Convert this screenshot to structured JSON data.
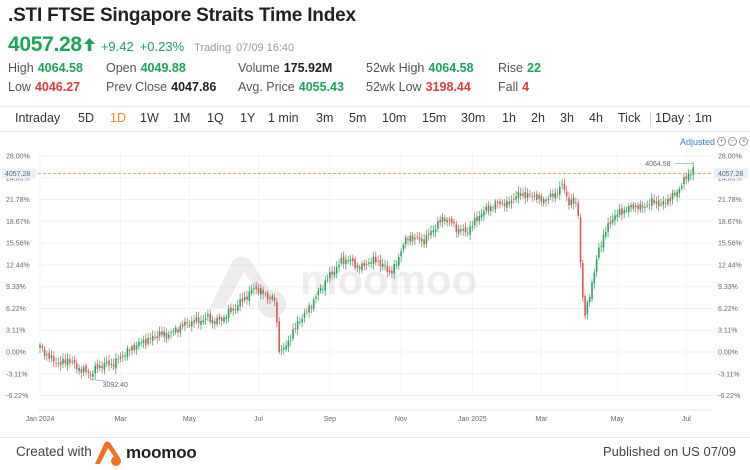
{
  "header": {
    "title": ".STI FTSE Singapore Straits Time Index",
    "price": "4057.28",
    "change": "+9.42",
    "change_pct": "+0.23%",
    "status": "Trading",
    "datetime": "07/09 16:40"
  },
  "stats": [
    {
      "label": "High",
      "value": "4064.58",
      "color": "#1aa55a"
    },
    {
      "label": "Low",
      "value": "4046.27",
      "color": "#e03c3c"
    },
    {
      "label": "Open",
      "value": "4049.88",
      "color": "#1aa55a"
    },
    {
      "label": "Prev Close",
      "value": "4047.86",
      "color": "#222222"
    },
    {
      "label": "Volume",
      "value": "175.92M",
      "color": "#222222"
    },
    {
      "label": "Avg. Price",
      "value": "4055.43",
      "color": "#1aa55a"
    },
    {
      "label": "52wk High",
      "value": "4064.58",
      "color": "#1aa55a"
    },
    {
      "label": "52wk Low",
      "value": "3198.44",
      "color": "#e03c3c"
    },
    {
      "label": "Rise",
      "value": "22",
      "color": "#1aa55a"
    },
    {
      "label": "Fall",
      "value": "4",
      "color": "#e03c3c"
    }
  ],
  "tabs": [
    "Intraday",
    "5D",
    "1D",
    "1W",
    "1M",
    "1Q",
    "1Y",
    "1 min",
    "3m",
    "5m",
    "10m",
    "15m",
    "30m",
    "1h",
    "2h",
    "3h",
    "4h",
    "Tick",
    "1Day : 1m"
  ],
  "active_tab": "1D",
  "chart_controls": {
    "adjusted": "Adjusted"
  },
  "watermark": "moomoo",
  "chart_data": {
    "type": "candlestick",
    "x_labels": [
      "Jan 2024",
      "Mar",
      "May",
      "Jul",
      "Sep",
      "Nov",
      "Jan 2025",
      "Mar",
      "May",
      "Jul"
    ],
    "y_ticks": [
      "28.00%",
      "24.89%",
      "21.78%",
      "18.67%",
      "15.56%",
      "12.44%",
      "9.33%",
      "6.22%",
      "3.11%",
      "0.00%",
      "-3.11%",
      "-6.22%"
    ],
    "ylim": [
      -6.22,
      28.0
    ],
    "current_value_label": "4057.28",
    "high_annotation": "4064.58",
    "low_annotation": "3092.40",
    "series_pct": [
      [
        0,
        0.8
      ],
      [
        3,
        -0.5
      ],
      [
        6,
        -1.2
      ],
      [
        9,
        -1.8
      ],
      [
        12,
        -1.0
      ],
      [
        15,
        -1.9
      ],
      [
        18,
        -2.6
      ],
      [
        21,
        -2.9
      ],
      [
        22,
        -3.2
      ],
      [
        25,
        -2.2
      ],
      [
        28,
        -1.7
      ],
      [
        31,
        -1.8
      ],
      [
        34,
        -1.1
      ],
      [
        37,
        -0.2
      ],
      [
        40,
        0.5
      ],
      [
        43,
        1.2
      ],
      [
        46,
        1.6
      ],
      [
        49,
        2.0
      ],
      [
        52,
        2.6
      ],
      [
        55,
        2.4
      ],
      [
        58,
        2.9
      ],
      [
        61,
        3.6
      ],
      [
        64,
        4.1
      ],
      [
        67,
        4.3
      ],
      [
        70,
        4.5
      ],
      [
        73,
        4.9
      ],
      [
        76,
        4.3
      ],
      [
        79,
        4.7
      ],
      [
        82,
        5.6
      ],
      [
        85,
        6.4
      ],
      [
        88,
        7.4
      ],
      [
        91,
        8.3
      ],
      [
        93,
        9.2
      ],
      [
        96,
        8.6
      ],
      [
        99,
        7.9
      ],
      [
        102,
        7.4
      ],
      [
        104,
        0.6
      ],
      [
        105,
        0.1
      ],
      [
        107,
        0.8
      ],
      [
        110,
        2.9
      ],
      [
        113,
        4.6
      ],
      [
        116,
        5.7
      ],
      [
        119,
        7.4
      ],
      [
        122,
        9.0
      ],
      [
        125,
        10.5
      ],
      [
        128,
        11.7
      ],
      [
        131,
        12.9
      ],
      [
        134,
        13.3
      ],
      [
        137,
        12.4
      ],
      [
        140,
        12.1
      ],
      [
        143,
        12.9
      ],
      [
        146,
        13.1
      ],
      [
        149,
        12.4
      ],
      [
        152,
        11.3
      ],
      [
        155,
        12.5
      ],
      [
        158,
        15.6
      ],
      [
        161,
        16.4
      ],
      [
        164,
        16.2
      ],
      [
        167,
        15.9
      ],
      [
        170,
        17.1
      ],
      [
        173,
        18.3
      ],
      [
        176,
        19.2
      ],
      [
        179,
        18.4
      ],
      [
        182,
        17.4
      ],
      [
        185,
        17.1
      ],
      [
        188,
        18.1
      ],
      [
        191,
        19.5
      ],
      [
        194,
        20.3
      ],
      [
        197,
        20.9
      ],
      [
        200,
        21.4
      ],
      [
        203,
        21.0
      ],
      [
        206,
        22.0
      ],
      [
        209,
        22.6
      ],
      [
        212,
        22.3
      ],
      [
        215,
        22.4
      ],
      [
        218,
        21.6
      ],
      [
        221,
        22.0
      ],
      [
        224,
        22.5
      ],
      [
        227,
        23.8
      ],
      [
        230,
        21.5
      ],
      [
        233,
        21.1
      ],
      [
        234,
        19.8
      ],
      [
        235,
        13.0
      ],
      [
        236,
        7.5
      ],
      [
        237,
        5.2
      ],
      [
        239,
        8.4
      ],
      [
        241,
        11.3
      ],
      [
        243,
        14.8
      ],
      [
        246,
        17.3
      ],
      [
        249,
        19.2
      ],
      [
        252,
        19.9
      ],
      [
        255,
        20.4
      ],
      [
        258,
        20.9
      ],
      [
        261,
        20.6
      ],
      [
        264,
        21.0
      ],
      [
        267,
        21.6
      ],
      [
        270,
        20.9
      ],
      [
        273,
        21.8
      ],
      [
        276,
        22.4
      ],
      [
        279,
        24.0
      ],
      [
        282,
        25.3
      ],
      [
        284,
        26.3
      ]
    ]
  },
  "footer": {
    "created_with": "Created with",
    "brand": "moomoo",
    "published": "Published on US 07/09"
  }
}
